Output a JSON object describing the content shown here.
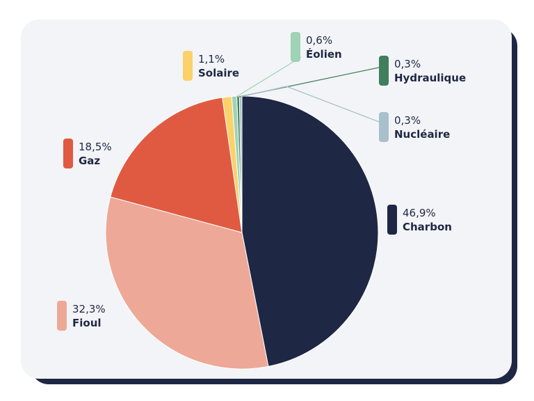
{
  "chart_data": {
    "type": "pie",
    "slices": [
      {
        "label": "Charbon",
        "value_label": "46,9%",
        "value": 46.9,
        "color": "#1e2744"
      },
      {
        "label": "Fioul",
        "value_label": "32,3%",
        "value": 32.3,
        "color": "#eda898"
      },
      {
        "label": "Gaz",
        "value_label": "18,5%",
        "value": 18.5,
        "color": "#e05a42"
      },
      {
        "label": "Solaire",
        "value_label": "1,1%",
        "value": 1.1,
        "color": "#fbd16a"
      },
      {
        "label": "Éolien",
        "value_label": "0,6%",
        "value": 0.6,
        "color": "#9ed3b5"
      },
      {
        "label": "Hydraulique",
        "value_label": "0,3%",
        "value": 0.3,
        "color": "#3f7f5c"
      },
      {
        "label": "Nucléaire",
        "value_label": "0,3%",
        "value": 0.3,
        "color": "#a9bfca"
      }
    ],
    "start": "12 o'clock",
    "direction": "clockwise",
    "legend": "labels beside slices"
  }
}
